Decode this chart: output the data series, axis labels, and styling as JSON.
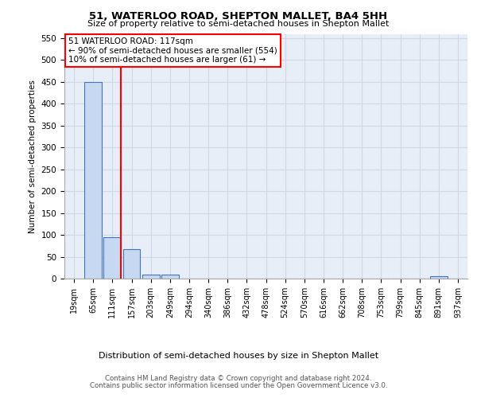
{
  "title": "51, WATERLOO ROAD, SHEPTON MALLET, BA4 5HH",
  "subtitle": "Size of property relative to semi-detached houses in Shepton Mallet",
  "xlabel": "Distribution of semi-detached houses by size in Shepton Mallet",
  "ylabel": "Number of semi-detached properties",
  "footer1": "Contains HM Land Registry data © Crown copyright and database right 2024.",
  "footer2": "Contains public sector information licensed under the Open Government Licence v3.0.",
  "bins": [
    "19sqm",
    "65sqm",
    "111sqm",
    "157sqm",
    "203sqm",
    "249sqm",
    "294sqm",
    "340sqm",
    "386sqm",
    "432sqm",
    "478sqm",
    "524sqm",
    "570sqm",
    "616sqm",
    "662sqm",
    "708sqm",
    "753sqm",
    "799sqm",
    "845sqm",
    "891sqm",
    "937sqm"
  ],
  "values": [
    0,
    450,
    95,
    68,
    10,
    10,
    0,
    0,
    0,
    0,
    0,
    0,
    0,
    0,
    0,
    0,
    0,
    0,
    0,
    5,
    0
  ],
  "bar_color": "#c6d9f0",
  "bar_edge_color": "#4472c4",
  "vline_x_index": 2,
  "vline_color": "red",
  "annotation_text": "51 WATERLOO ROAD: 117sqm\n← 90% of semi-detached houses are smaller (554)\n10% of semi-detached houses are larger (61) →",
  "annotation_box_color": "white",
  "annotation_box_edge": "red",
  "ylim": [
    0,
    560
  ],
  "yticks": [
    0,
    50,
    100,
    150,
    200,
    250,
    300,
    350,
    400,
    450,
    500,
    550
  ],
  "plot_bg_color": "#e8eef7",
  "grid_color": "#d0d8e8"
}
